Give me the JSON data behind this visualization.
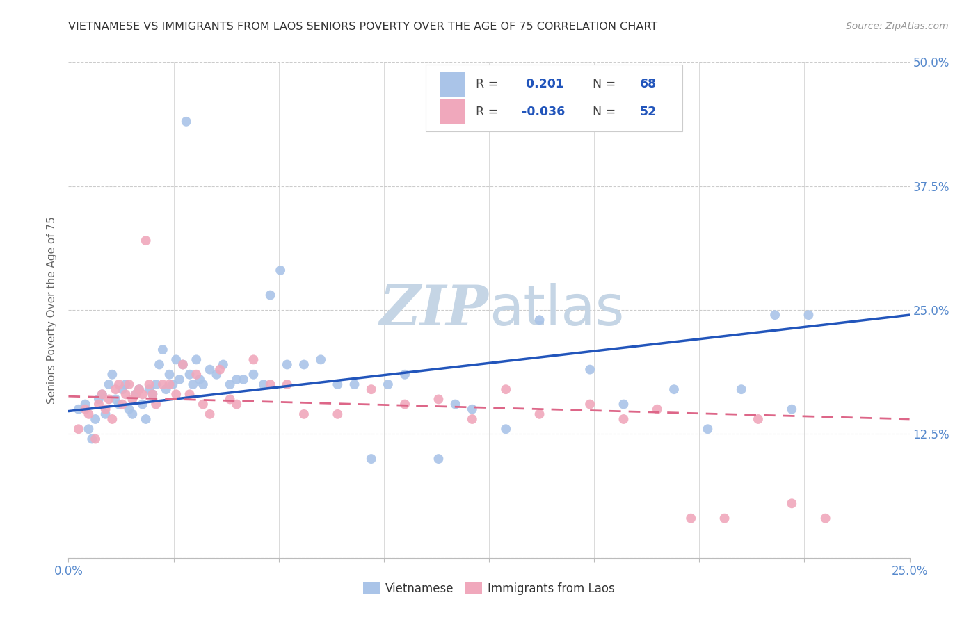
{
  "title": "VIETNAMESE VS IMMIGRANTS FROM LAOS SENIORS POVERTY OVER THE AGE OF 75 CORRELATION CHART",
  "source": "Source: ZipAtlas.com",
  "ylabel": "Seniors Poverty Over the Age of 75",
  "xlim": [
    0.0,
    0.25
  ],
  "ylim": [
    0.0,
    0.5
  ],
  "ytick_pos": [
    0.0,
    0.125,
    0.25,
    0.375,
    0.5
  ],
  "ytick_labels": [
    "",
    "12.5%",
    "25.0%",
    "37.5%",
    "50.0%"
  ],
  "R_vietnamese": 0.201,
  "N_vietnamese": 68,
  "R_laos": -0.036,
  "N_laos": 52,
  "blue_color": "#aac4e8",
  "pink_color": "#f0a8bc",
  "blue_line_color": "#2255bb",
  "pink_line_color": "#dd6688",
  "grid_color": "#cccccc",
  "watermark_color": "#c5d5e5",
  "axis_color": "#5588cc",
  "label_color": "#666666",
  "viet_trend_x0": 0.0,
  "viet_trend_y0": 0.148,
  "viet_trend_x1": 0.25,
  "viet_trend_y1": 0.245,
  "laos_trend_x0": 0.0,
  "laos_trend_y0": 0.163,
  "laos_trend_x1": 0.25,
  "laos_trend_y1": 0.14,
  "viet_x": [
    0.003,
    0.005,
    0.006,
    0.007,
    0.008,
    0.009,
    0.01,
    0.011,
    0.012,
    0.013,
    0.014,
    0.015,
    0.016,
    0.017,
    0.018,
    0.019,
    0.02,
    0.021,
    0.022,
    0.023,
    0.024,
    0.025,
    0.026,
    0.027,
    0.028,
    0.029,
    0.03,
    0.031,
    0.032,
    0.033,
    0.034,
    0.035,
    0.036,
    0.037,
    0.038,
    0.039,
    0.04,
    0.042,
    0.044,
    0.046,
    0.048,
    0.05,
    0.052,
    0.055,
    0.058,
    0.06,
    0.063,
    0.065,
    0.07,
    0.075,
    0.08,
    0.085,
    0.09,
    0.095,
    0.1,
    0.11,
    0.115,
    0.12,
    0.13,
    0.14,
    0.155,
    0.165,
    0.18,
    0.19,
    0.2,
    0.21,
    0.215,
    0.22
  ],
  "viet_y": [
    0.15,
    0.155,
    0.13,
    0.12,
    0.14,
    0.16,
    0.165,
    0.145,
    0.175,
    0.185,
    0.16,
    0.155,
    0.17,
    0.175,
    0.15,
    0.145,
    0.165,
    0.17,
    0.155,
    0.14,
    0.17,
    0.165,
    0.175,
    0.195,
    0.21,
    0.17,
    0.185,
    0.175,
    0.2,
    0.18,
    0.195,
    0.44,
    0.185,
    0.175,
    0.2,
    0.18,
    0.175,
    0.19,
    0.185,
    0.195,
    0.175,
    0.18,
    0.18,
    0.185,
    0.175,
    0.265,
    0.29,
    0.195,
    0.195,
    0.2,
    0.175,
    0.175,
    0.1,
    0.175,
    0.185,
    0.1,
    0.155,
    0.15,
    0.13,
    0.24,
    0.19,
    0.155,
    0.17,
    0.13,
    0.17,
    0.245,
    0.15,
    0.245
  ],
  "laos_x": [
    0.003,
    0.005,
    0.006,
    0.008,
    0.009,
    0.01,
    0.011,
    0.012,
    0.013,
    0.014,
    0.015,
    0.016,
    0.017,
    0.018,
    0.019,
    0.02,
    0.021,
    0.022,
    0.023,
    0.024,
    0.025,
    0.026,
    0.028,
    0.03,
    0.032,
    0.034,
    0.036,
    0.038,
    0.04,
    0.042,
    0.045,
    0.048,
    0.05,
    0.055,
    0.06,
    0.065,
    0.07,
    0.08,
    0.09,
    0.1,
    0.11,
    0.12,
    0.13,
    0.14,
    0.155,
    0.165,
    0.175,
    0.185,
    0.195,
    0.205,
    0.215,
    0.225
  ],
  "laos_y": [
    0.13,
    0.15,
    0.145,
    0.12,
    0.155,
    0.165,
    0.15,
    0.16,
    0.14,
    0.17,
    0.175,
    0.155,
    0.165,
    0.175,
    0.16,
    0.165,
    0.17,
    0.165,
    0.32,
    0.175,
    0.165,
    0.155,
    0.175,
    0.175,
    0.165,
    0.195,
    0.165,
    0.185,
    0.155,
    0.145,
    0.19,
    0.16,
    0.155,
    0.2,
    0.175,
    0.175,
    0.145,
    0.145,
    0.17,
    0.155,
    0.16,
    0.14,
    0.17,
    0.145,
    0.155,
    0.14,
    0.15,
    0.04,
    0.04,
    0.14,
    0.055,
    0.04
  ]
}
